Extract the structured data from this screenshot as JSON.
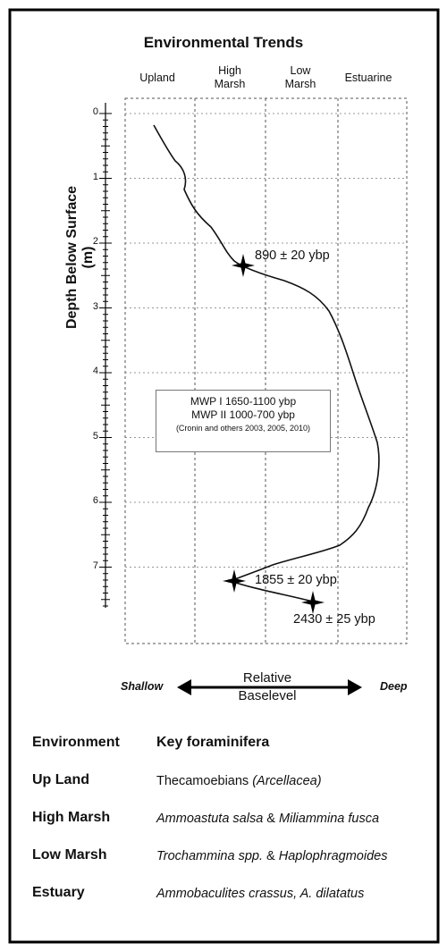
{
  "title": "Environmental Trends",
  "columns": [
    "Upland",
    "High\nMarsh",
    "Low\nMarsh",
    "Estuarine"
  ],
  "y_axis_label": "Depth Below Surface (m)",
  "depth_ticks": [
    "0",
    "1",
    "2",
    "3",
    "4",
    "5",
    "6",
    "7"
  ],
  "dates": [
    {
      "label": "890 ± 20 ybp",
      "depth_m": 2.42
    },
    {
      "label": "1855 ± 20 ybp",
      "depth_m": 7.35
    },
    {
      "label": "2430 ± 25 ybp",
      "depth_m": 7.62
    }
  ],
  "mwp_box": {
    "line1": "MWP I 1650-1100 ybp",
    "line2": "MWP II 1000-700 ybp",
    "line3": "(Cronin and others 2003, 2005, 2010)"
  },
  "baselevel": {
    "left": "Shallow",
    "center_line1": "Relative",
    "center_line2": "Baselevel",
    "right": "Deep"
  },
  "table": {
    "header_env": "Environment",
    "header_fora": "Key foraminifera",
    "rows": [
      {
        "env": "Up Land",
        "fora_html": "Thecamoebians <i>(Arcellacea)</i>"
      },
      {
        "env": "High Marsh",
        "fora_html": "<i>Ammoastuta salsa</i> &amp; <i>Miliammina fusca</i>"
      },
      {
        "env": "Low Marsh",
        "fora_html": "<i>Trochammina spp.</i> &amp; <i>Haplophragmoides</i>"
      },
      {
        "env": "Estuary",
        "fora_html": "<i>Ammobaculites crassus, A. dilatatus</i>"
      }
    ]
  },
  "colors": {
    "frame": "#000000",
    "grid": "#555555",
    "curve": "#111111"
  }
}
